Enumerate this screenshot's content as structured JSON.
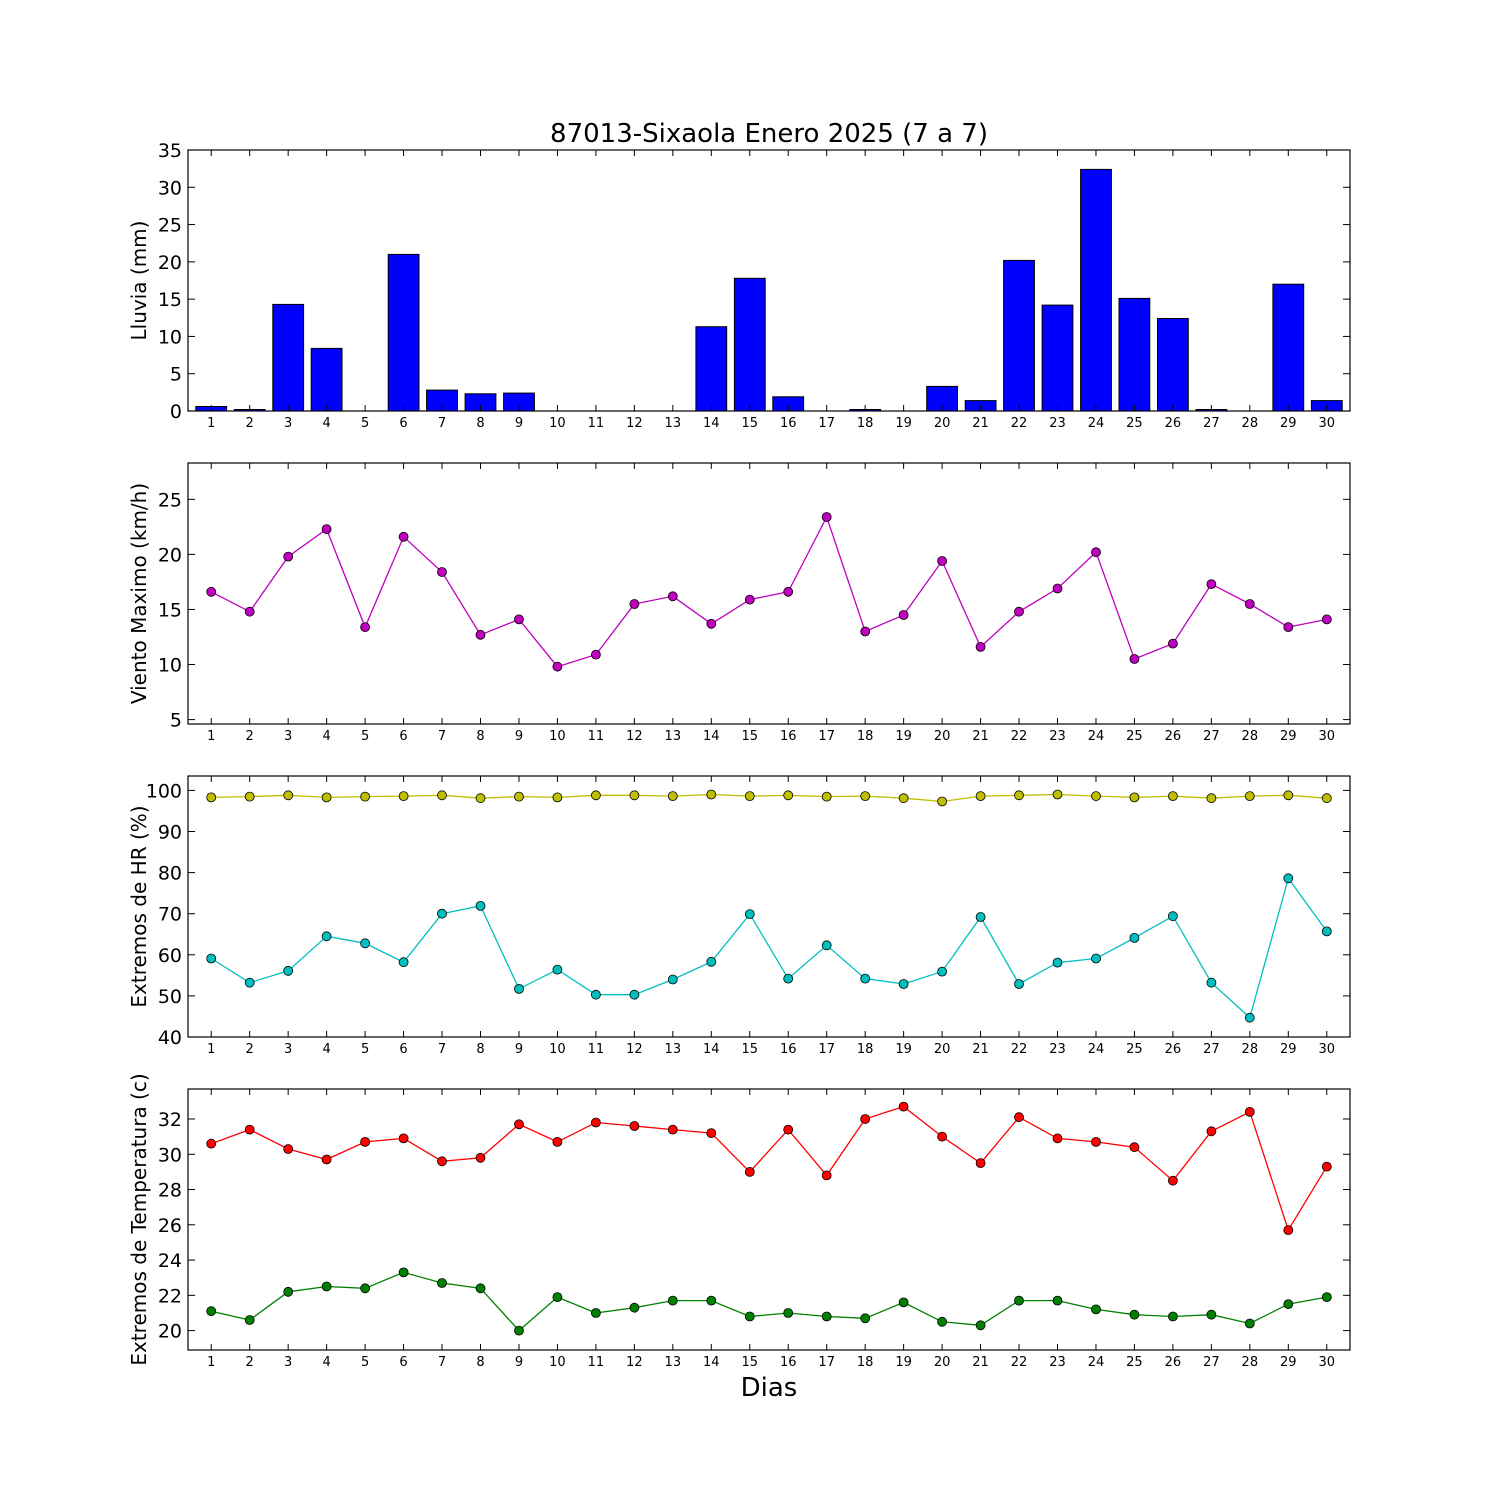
{
  "chart_data": [
    {
      "type": "bar",
      "title": "87013-Sixaola Enero 2025  (7 a 7)",
      "ylabel": "Lluvia (mm)",
      "xlabel": "",
      "ylim": [
        0,
        35
      ],
      "yticks": [
        0,
        5,
        10,
        15,
        20,
        25,
        30,
        35
      ],
      "categories": [
        "1",
        "2",
        "3",
        "4",
        "5",
        "6",
        "7",
        "8",
        "9",
        "10",
        "11",
        "12",
        "13",
        "14",
        "15",
        "16",
        "17",
        "18",
        "19",
        "20",
        "21",
        "22",
        "23",
        "24",
        "25",
        "26",
        "27",
        "28",
        "29",
        "30"
      ],
      "series": [
        {
          "color": "#0000ff",
          "values": [
            0.6,
            0.2,
            14.3,
            8.4,
            0,
            21.0,
            2.8,
            2.3,
            2.4,
            0,
            0,
            0,
            0,
            11.3,
            17.8,
            1.9,
            0,
            0.2,
            0,
            3.3,
            1.4,
            20.2,
            14.2,
            32.4,
            15.1,
            12.4,
            0.2,
            0,
            17.0,
            1.4
          ]
        }
      ]
    },
    {
      "type": "line",
      "title": "",
      "ylabel": "Viento Maximo (km/h)",
      "xlabel": "",
      "ylim": [
        4.6,
        28.3
      ],
      "yticks": [
        5,
        10,
        15,
        20,
        25
      ],
      "x": [
        1,
        2,
        3,
        4,
        5,
        6,
        7,
        8,
        9,
        10,
        11,
        12,
        13,
        14,
        15,
        16,
        17,
        18,
        19,
        20,
        21,
        22,
        23,
        24,
        25,
        26,
        27,
        28,
        29,
        30
      ],
      "series": [
        {
          "color": "#bf00bf",
          "values": [
            16.6,
            14.8,
            19.8,
            22.3,
            13.4,
            21.6,
            18.4,
            12.7,
            14.1,
            9.8,
            10.9,
            15.5,
            16.2,
            13.7,
            15.9,
            16.6,
            23.4,
            13.0,
            14.5,
            19.4,
            11.6,
            14.8,
            16.9,
            20.2,
            10.5,
            11.9,
            17.3,
            15.5,
            13.4,
            14.1
          ]
        }
      ]
    },
    {
      "type": "line",
      "title": "",
      "ylabel": "Extremos de HR (%)",
      "xlabel": "",
      "ylim": [
        40,
        103.5
      ],
      "yticks": [
        40,
        50,
        60,
        70,
        80,
        90,
        100
      ],
      "x": [
        1,
        2,
        3,
        4,
        5,
        6,
        7,
        8,
        9,
        10,
        11,
        12,
        13,
        14,
        15,
        16,
        17,
        18,
        19,
        20,
        21,
        22,
        23,
        24,
        25,
        26,
        27,
        28,
        29,
        30
      ],
      "series": [
        {
          "color": "#bfbf00",
          "values": [
            98.3,
            98.5,
            98.8,
            98.3,
            98.5,
            98.6,
            98.8,
            98.1,
            98.5,
            98.3,
            98.8,
            98.8,
            98.6,
            99.0,
            98.6,
            98.8,
            98.5,
            98.6,
            98.1,
            97.3,
            98.6,
            98.8,
            99.0,
            98.6,
            98.3,
            98.6,
            98.1,
            98.6,
            98.8,
            98.1
          ]
        },
        {
          "color": "#00bfbf",
          "values": [
            59.1,
            53.2,
            56.1,
            64.5,
            62.8,
            58.2,
            70.0,
            71.9,
            51.7,
            56.4,
            50.3,
            50.3,
            54.0,
            58.3,
            69.9,
            54.2,
            62.3,
            54.2,
            52.9,
            55.9,
            69.2,
            52.9,
            58.1,
            59.1,
            64.1,
            69.4,
            53.2,
            44.7,
            78.6,
            65.7
          ]
        }
      ]
    },
    {
      "type": "line",
      "title": "",
      "ylabel": "Extremos de Temperatura (c)",
      "xlabel": "Dias",
      "ylim": [
        18.9,
        33.7
      ],
      "yticks": [
        20,
        22,
        24,
        26,
        28,
        30,
        32
      ],
      "x": [
        1,
        2,
        3,
        4,
        5,
        6,
        7,
        8,
        9,
        10,
        11,
        12,
        13,
        14,
        15,
        16,
        17,
        18,
        19,
        20,
        21,
        22,
        23,
        24,
        25,
        26,
        27,
        28,
        29,
        30
      ],
      "series": [
        {
          "color": "#ff0000",
          "values": [
            30.6,
            31.4,
            30.3,
            29.7,
            30.7,
            30.9,
            29.6,
            29.8,
            31.7,
            30.7,
            31.8,
            31.6,
            31.4,
            31.2,
            29.0,
            31.4,
            28.8,
            32.0,
            32.7,
            31.0,
            29.5,
            32.1,
            30.9,
            30.7,
            30.4,
            28.5,
            31.3,
            32.4,
            25.7,
            29.3
          ]
        },
        {
          "color": "#008000",
          "values": [
            21.1,
            20.6,
            22.2,
            22.5,
            22.4,
            23.3,
            22.7,
            22.4,
            20.0,
            21.9,
            21.0,
            21.3,
            21.7,
            21.7,
            20.8,
            21.0,
            20.8,
            20.7,
            21.6,
            20.5,
            20.3,
            21.7,
            21.7,
            21.2,
            20.9,
            20.8,
            20.9,
            20.4,
            21.5,
            21.9
          ]
        }
      ]
    }
  ]
}
